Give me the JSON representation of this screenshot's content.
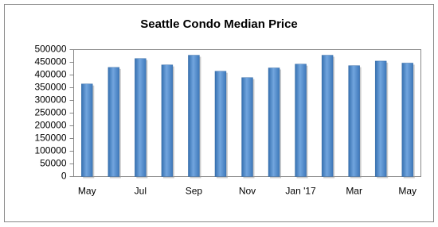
{
  "chart_data": {
    "type": "bar",
    "title": "Seattle Condo Median Price",
    "categories": [
      "May",
      null,
      "Jul",
      null,
      "Sep",
      null,
      "Nov",
      null,
      "Jan '17",
      null,
      "Mar",
      null,
      "May"
    ],
    "values": [
      365000,
      430000,
      465000,
      440000,
      478000,
      415000,
      390000,
      428000,
      443000,
      478000,
      437000,
      455000,
      447000
    ],
    "color": "#4a86c8",
    "ylim": [
      0,
      500000
    ],
    "yticks": [
      0,
      50000,
      100000,
      150000,
      200000,
      250000,
      300000,
      350000,
      400000,
      450000,
      500000
    ]
  }
}
